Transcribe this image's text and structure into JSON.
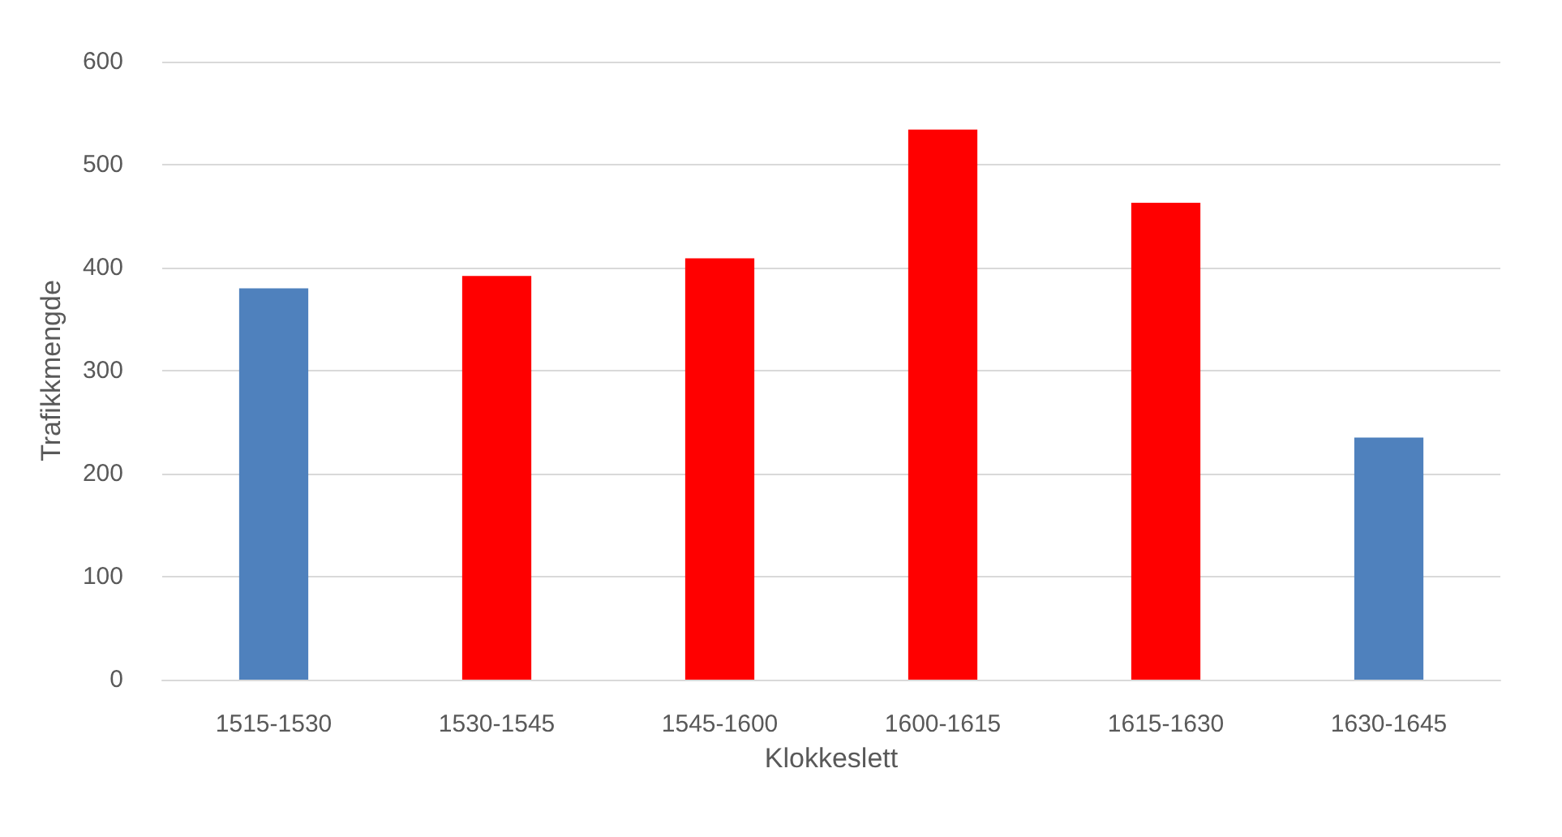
{
  "chart_data": {
    "type": "bar",
    "xlabel": "Klokkeslett",
    "ylabel": "Trafikkmengde",
    "categories": [
      "1515-1530",
      "1530-1545",
      "1545-1600",
      "1600-1615",
      "1615-1630",
      "1630-1645"
    ],
    "values": [
      380,
      392,
      409,
      534,
      463,
      235
    ],
    "colors": [
      "#4f81bd",
      "#ff0000",
      "#ff0000",
      "#ff0000",
      "#ff0000",
      "#4f81bd"
    ],
    "ylim": [
      0,
      600
    ],
    "yticks": [
      0,
      100,
      200,
      300,
      400,
      500,
      600
    ],
    "grid": "y"
  }
}
